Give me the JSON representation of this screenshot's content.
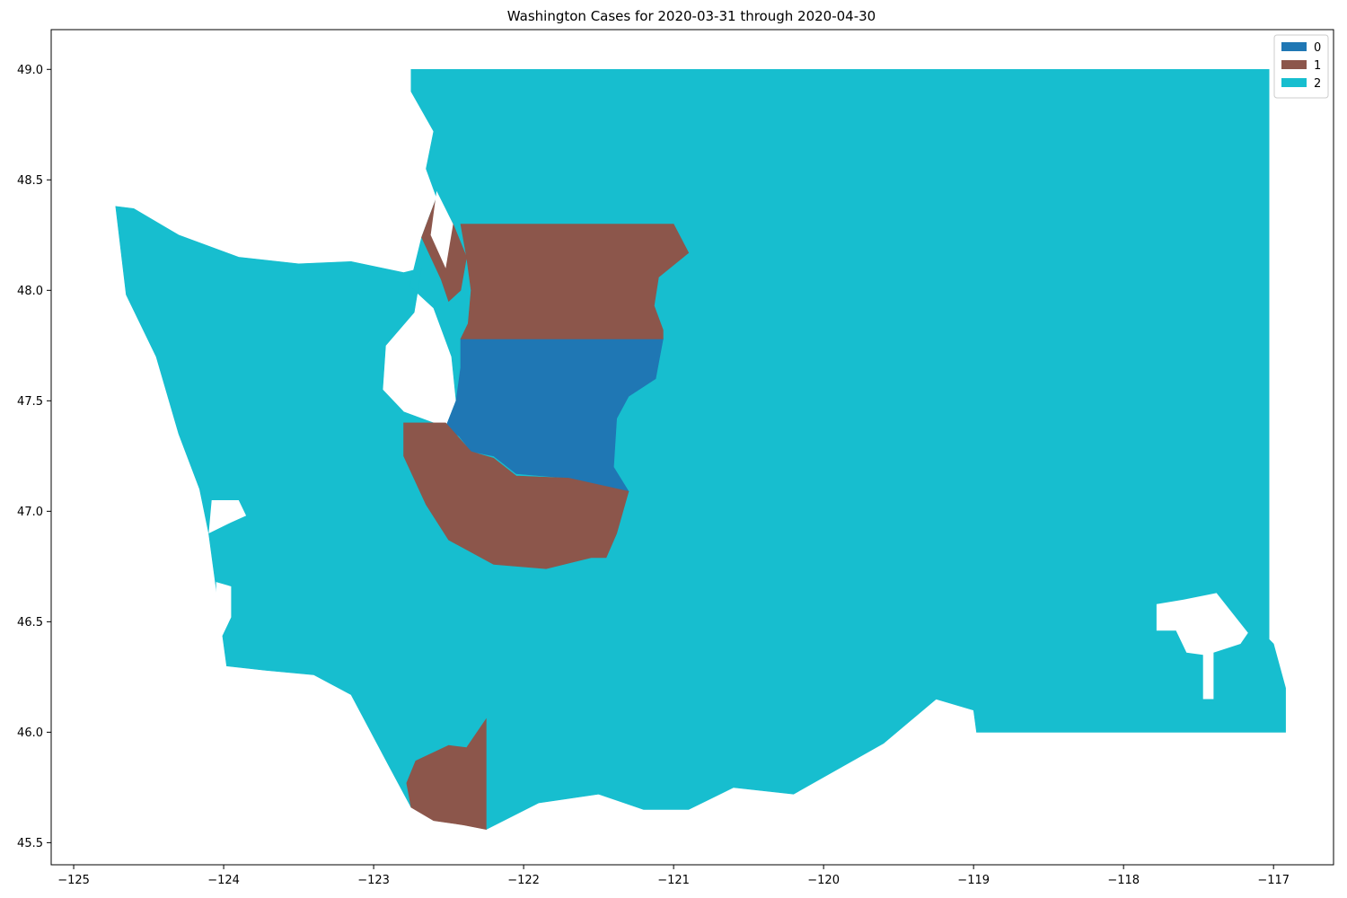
{
  "title": "Washington Cases for 2020-03-31 through 2020-04-30",
  "colors": {
    "class_0": "#1f77b4",
    "class_1": "#8c564b",
    "class_2": "#17becf"
  },
  "legend": {
    "placement": "top-right",
    "entries": [
      {
        "label": "0",
        "color": "#1f77b4"
      },
      {
        "label": "1",
        "color": "#8c564b"
      },
      {
        "label": "2",
        "color": "#17becf"
      }
    ]
  },
  "chart_data": {
    "type": "map",
    "title": "Washington Cases for 2020-03-31 through 2020-04-30",
    "xlim": [
      -125.15,
      -116.6
    ],
    "ylim": [
      45.4,
      49.18
    ],
    "x_ticks": [
      {
        "value": -125,
        "label": "−125"
      },
      {
        "value": -124,
        "label": "−124"
      },
      {
        "value": -123,
        "label": "−123"
      },
      {
        "value": -122,
        "label": "−122"
      },
      {
        "value": -121,
        "label": "−121"
      },
      {
        "value": -120,
        "label": "−120"
      },
      {
        "value": -119,
        "label": "−119"
      },
      {
        "value": -118,
        "label": "−118"
      },
      {
        "value": -117,
        "label": "−117"
      }
    ],
    "y_ticks": [
      {
        "value": 45.5,
        "label": "45.5"
      },
      {
        "value": 46.0,
        "label": "46.0"
      },
      {
        "value": 46.5,
        "label": "46.5"
      },
      {
        "value": 47.0,
        "label": "47.0"
      },
      {
        "value": 47.5,
        "label": "47.5"
      },
      {
        "value": 48.0,
        "label": "48.0"
      },
      {
        "value": 48.5,
        "label": "48.5"
      },
      {
        "value": 49.0,
        "label": "49.0"
      }
    ],
    "grid": false,
    "categories": [
      "0",
      "1",
      "2"
    ],
    "regions": [
      {
        "category": "0",
        "polygon": [
          [
            -122.42,
            47.78
          ],
          [
            -121.07,
            47.78
          ],
          [
            -121.12,
            47.6
          ],
          [
            -121.3,
            47.52
          ],
          [
            -121.38,
            47.42
          ],
          [
            -121.4,
            47.2
          ],
          [
            -121.3,
            47.09
          ],
          [
            -121.7,
            47.15
          ],
          [
            -122.05,
            47.17
          ],
          [
            -122.2,
            47.25
          ],
          [
            -122.35,
            47.27
          ],
          [
            -122.43,
            47.34
          ],
          [
            -122.52,
            47.38
          ],
          [
            -122.45,
            47.5
          ],
          [
            -122.42,
            47.65
          ]
        ]
      },
      {
        "category": "1",
        "polygon": [
          [
            -122.42,
            48.3
          ],
          [
            -121.0,
            48.3
          ],
          [
            -120.9,
            48.17
          ],
          [
            -121.1,
            48.06
          ],
          [
            -121.13,
            47.93
          ],
          [
            -121.07,
            47.82
          ],
          [
            -121.07,
            47.78
          ],
          [
            -122.42,
            47.78
          ],
          [
            -122.37,
            47.85
          ],
          [
            -122.35,
            48.0
          ],
          [
            -122.38,
            48.15
          ]
        ]
      },
      {
        "category": "1",
        "polygon": [
          [
            -122.58,
            48.42
          ],
          [
            -122.47,
            48.3
          ],
          [
            -122.38,
            48.15
          ],
          [
            -122.42,
            48.0
          ],
          [
            -122.5,
            47.95
          ],
          [
            -122.55,
            48.05
          ],
          [
            -122.68,
            48.24
          ],
          [
            -122.62,
            48.35
          ]
        ]
      },
      {
        "category": "1",
        "polygon": [
          [
            -122.8,
            47.4
          ],
          [
            -122.52,
            47.4
          ],
          [
            -122.35,
            47.27
          ],
          [
            -122.2,
            47.24
          ],
          [
            -122.05,
            47.16
          ],
          [
            -121.7,
            47.15
          ],
          [
            -121.3,
            47.09
          ],
          [
            -121.38,
            46.9
          ],
          [
            -121.45,
            46.79
          ],
          [
            -121.55,
            46.79
          ],
          [
            -121.85,
            46.74
          ],
          [
            -122.2,
            46.76
          ],
          [
            -122.5,
            46.87
          ],
          [
            -122.65,
            47.03
          ],
          [
            -122.8,
            47.25
          ]
        ]
      },
      {
        "category": "1",
        "polygon": [
          [
            -122.25,
            46.06
          ],
          [
            -122.25,
            45.56
          ],
          [
            -122.4,
            45.58
          ],
          [
            -122.6,
            45.6
          ],
          [
            -122.75,
            45.66
          ],
          [
            -122.78,
            45.77
          ],
          [
            -122.72,
            45.87
          ],
          [
            -122.5,
            45.94
          ],
          [
            -122.38,
            45.93
          ]
        ]
      },
      {
        "category": "2",
        "polygon": [
          [
            -122.75,
            49.0
          ],
          [
            -117.03,
            49.0
          ],
          [
            -117.03,
            46.42
          ],
          [
            -117.0,
            46.4
          ],
          [
            -116.92,
            46.2
          ],
          [
            -116.92,
            46.0
          ],
          [
            -117.6,
            46.0
          ],
          [
            -118.5,
            46.0
          ],
          [
            -118.98,
            46.0
          ],
          [
            -119.0,
            46.1
          ],
          [
            -119.25,
            46.15
          ],
          [
            -119.6,
            45.95
          ],
          [
            -120.2,
            45.72
          ],
          [
            -120.6,
            45.75
          ],
          [
            -120.9,
            45.65
          ],
          [
            -121.2,
            45.65
          ],
          [
            -121.5,
            45.72
          ],
          [
            -121.9,
            45.68
          ],
          [
            -122.25,
            45.56
          ],
          [
            -122.25,
            46.06
          ],
          [
            -122.38,
            45.93
          ],
          [
            -122.5,
            45.94
          ],
          [
            -122.72,
            45.87
          ],
          [
            -122.78,
            45.77
          ],
          [
            -122.75,
            45.66
          ],
          [
            -122.9,
            45.85
          ],
          [
            -123.15,
            46.17
          ],
          [
            -123.4,
            46.26
          ],
          [
            -123.72,
            46.28
          ],
          [
            -123.98,
            46.3
          ],
          [
            -124.05,
            46.65
          ],
          [
            -124.1,
            46.9
          ],
          [
            -124.16,
            47.1
          ],
          [
            -124.3,
            47.35
          ],
          [
            -124.45,
            47.7
          ],
          [
            -124.65,
            47.98
          ],
          [
            -124.72,
            48.38
          ],
          [
            -124.6,
            48.37
          ],
          [
            -124.3,
            48.25
          ],
          [
            -123.9,
            48.15
          ],
          [
            -123.5,
            48.12
          ],
          [
            -123.15,
            48.13
          ],
          [
            -122.8,
            48.08
          ],
          [
            -122.68,
            48.1
          ],
          [
            -122.73,
            47.9
          ],
          [
            -122.92,
            47.75
          ],
          [
            -122.94,
            47.55
          ],
          [
            -122.8,
            47.45
          ],
          [
            -122.52,
            47.38
          ],
          [
            -122.45,
            47.5
          ],
          [
            -122.48,
            47.7
          ],
          [
            -122.6,
            47.92
          ],
          [
            -122.76,
            48.02
          ],
          [
            -122.68,
            48.24
          ],
          [
            -122.62,
            48.35
          ],
          [
            -122.58,
            48.42
          ],
          [
            -122.65,
            48.55
          ],
          [
            -122.6,
            48.72
          ],
          [
            -122.75,
            48.9
          ]
        ]
      }
    ],
    "holes": [
      {
        "polygon": [
          [
            -117.6,
            46.6
          ],
          [
            -117.38,
            46.63
          ],
          [
            -117.17,
            46.45
          ],
          [
            -117.22,
            46.4
          ],
          [
            -117.4,
            46.36
          ],
          [
            -117.4,
            46.15
          ],
          [
            -117.47,
            46.15
          ],
          [
            -117.47,
            46.35
          ],
          [
            -117.58,
            46.36
          ],
          [
            -117.65,
            46.46
          ],
          [
            -117.78,
            46.46
          ],
          [
            -117.78,
            46.58
          ]
        ]
      },
      {
        "polygon": [
          [
            -124.1,
            46.9
          ],
          [
            -123.95,
            46.95
          ],
          [
            -123.85,
            46.98
          ],
          [
            -123.9,
            47.05
          ],
          [
            -124.08,
            47.05
          ]
        ]
      },
      {
        "polygon": [
          [
            -124.05,
            46.68
          ],
          [
            -123.95,
            46.66
          ],
          [
            -123.95,
            46.52
          ],
          [
            -124.02,
            46.42
          ],
          [
            -124.05,
            46.52
          ]
        ]
      },
      {
        "polygon": [
          [
            -122.95,
            48.6
          ],
          [
            -122.8,
            48.58
          ],
          [
            -122.78,
            48.47
          ],
          [
            -122.9,
            48.43
          ],
          [
            -123.0,
            48.5
          ]
        ]
      },
      {
        "polygon": [
          [
            -122.58,
            48.45
          ],
          [
            -122.62,
            48.25
          ],
          [
            -122.52,
            48.1
          ],
          [
            -122.47,
            48.3
          ]
        ]
      }
    ]
  }
}
